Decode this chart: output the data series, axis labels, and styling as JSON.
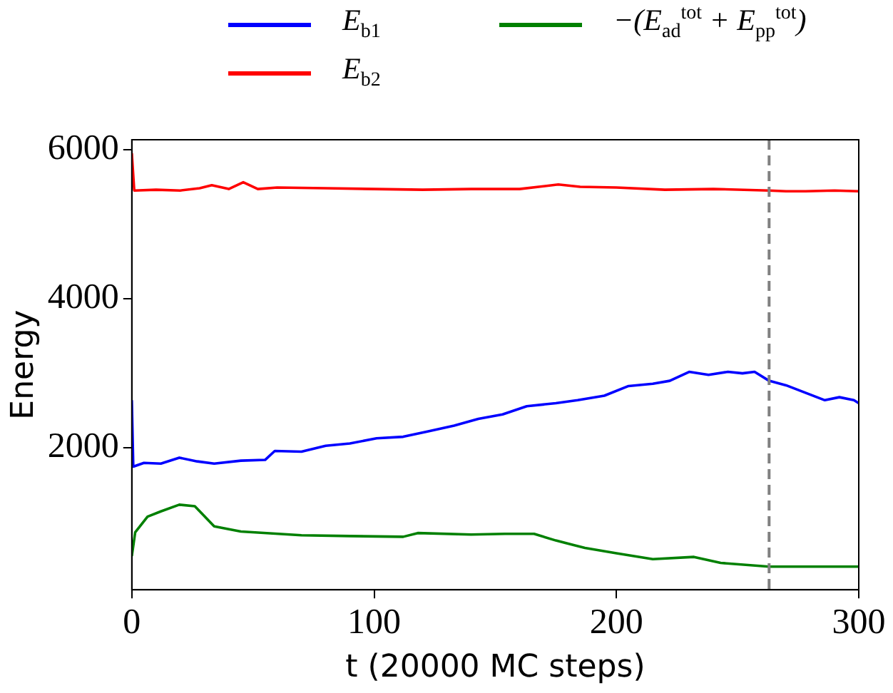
{
  "chart_data": {
    "type": "line",
    "xlabel": "t (20000 MC steps)",
    "ylabel": "Energy",
    "xlim": [
      0,
      300
    ],
    "xticks": [
      0,
      100,
      200,
      300
    ],
    "ylim": [
      100,
      6130
    ],
    "yticks": [
      2000,
      4000,
      6000
    ],
    "legend": "top",
    "grid": false,
    "marker": "none",
    "line_style": "solid",
    "ref_lines": [
      {
        "axis": "x",
        "value": 263,
        "color": "#808080",
        "line_style": "dashed"
      }
    ],
    "series": [
      {
        "name": "E$_{b1}$",
        "color": "#0000ff",
        "x": [
          0,
          0.6,
          5,
          12,
          19.6,
          27,
          34,
          45,
          55,
          59,
          70,
          80,
          90,
          101,
          112,
          122,
          133,
          143,
          153,
          163,
          175,
          184,
          195,
          205,
          215,
          222,
          230,
          238,
          246,
          252,
          257,
          263,
          270,
          278,
          286,
          292,
          298,
          300
        ],
        "values": [
          2640,
          1750,
          1800,
          1790,
          1870,
          1820,
          1790,
          1830,
          1840,
          1960,
          1950,
          2030,
          2060,
          2130,
          2150,
          2220,
          2300,
          2390,
          2450,
          2560,
          2600,
          2640,
          2700,
          2830,
          2860,
          2900,
          3020,
          2980,
          3020,
          3000,
          3020,
          2900,
          2840,
          2740,
          2640,
          2680,
          2640,
          2600
        ]
      },
      {
        "name": "E$_{b2}$",
        "color": "#ff0000",
        "x": [
          0,
          1,
          10,
          20,
          28,
          33,
          40,
          46,
          52,
          60,
          80,
          100,
          120,
          140,
          160,
          176,
          185,
          200,
          220,
          240,
          263,
          270,
          278,
          290,
          300
        ],
        "values": [
          5950,
          5450,
          5460,
          5450,
          5480,
          5520,
          5470,
          5560,
          5470,
          5490,
          5480,
          5470,
          5460,
          5470,
          5470,
          5530,
          5500,
          5490,
          5460,
          5470,
          5450,
          5440,
          5440,
          5450,
          5440
        ]
      },
      {
        "name": "−(E$_{ad}$$^{tot}$ + E$_{pp}$$^{tot}$)",
        "color": "#008000",
        "x": [
          0,
          1.4,
          6.5,
          12,
          19.6,
          26,
          34,
          45,
          70,
          90,
          112,
          118,
          140,
          154,
          166,
          175,
          187,
          200,
          215,
          232,
          243,
          263,
          300
        ],
        "values": [
          550,
          870,
          1080,
          1150,
          1240,
          1220,
          950,
          880,
          830,
          820,
          810,
          860,
          840,
          850,
          850,
          760,
          660,
          590,
          510,
          540,
          460,
          410,
          410
        ]
      }
    ]
  }
}
